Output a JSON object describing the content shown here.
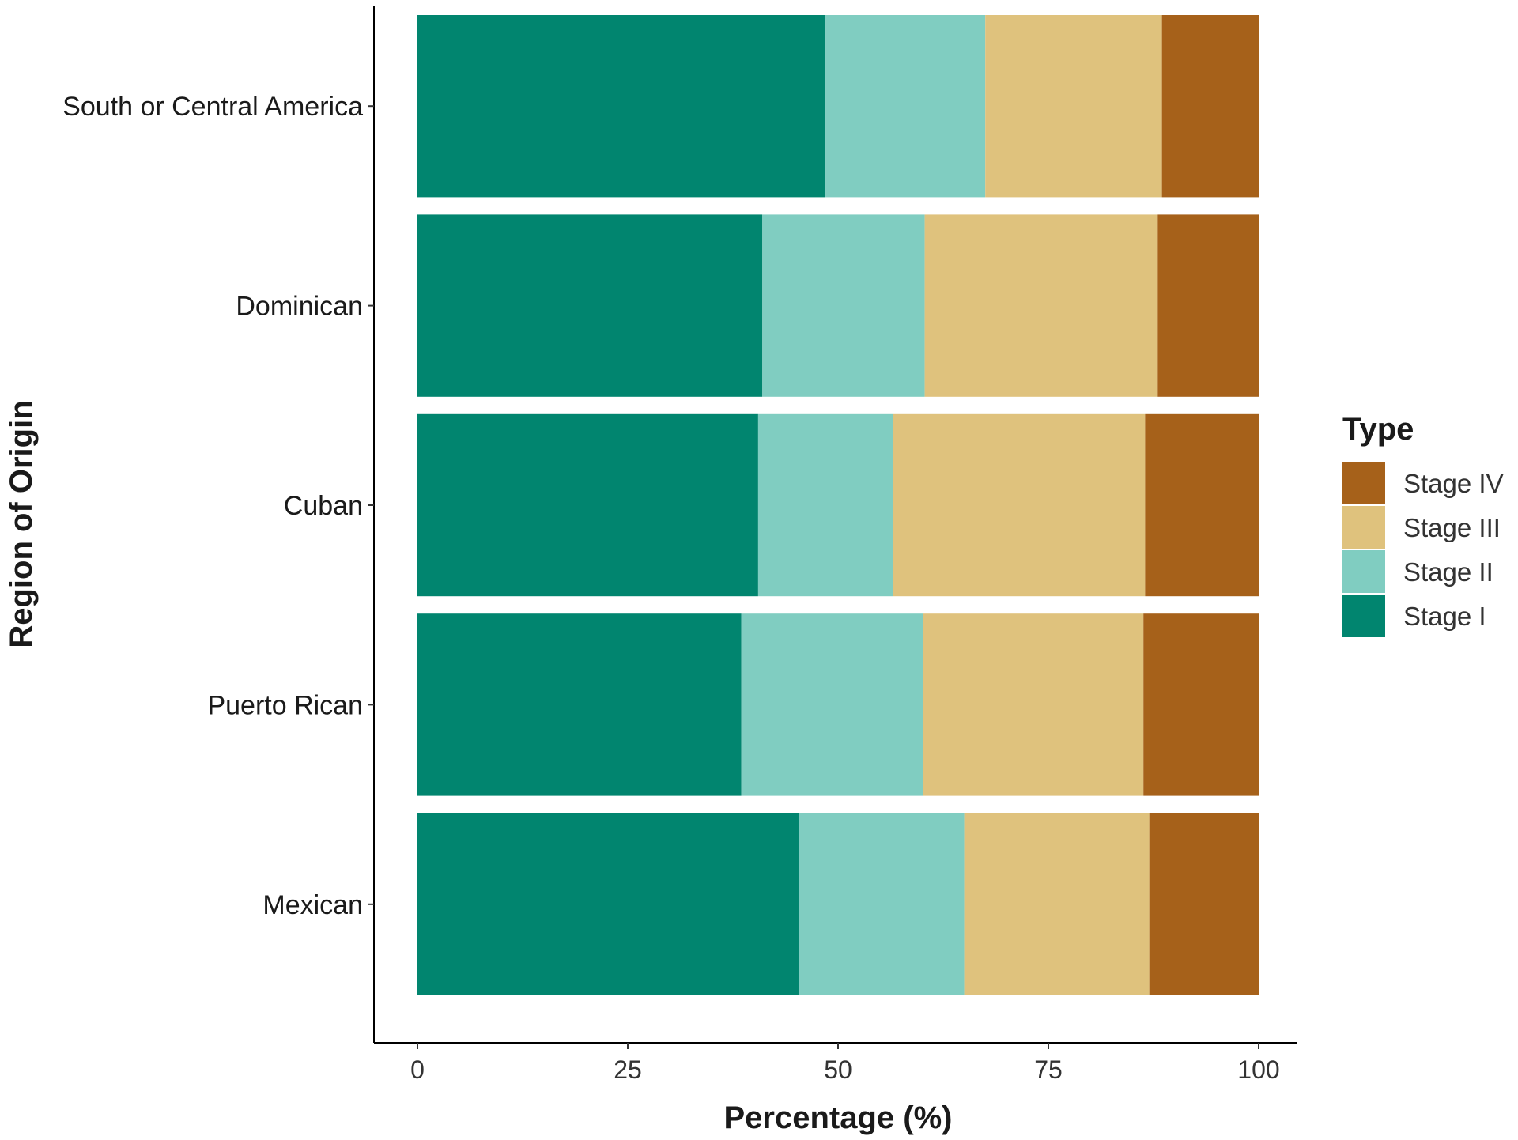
{
  "chart_data": {
    "type": "bar",
    "orientation": "horizontal",
    "stacked": true,
    "xlabel": "Percentage (%)",
    "ylabel": "Region of Origin",
    "xlim": [
      0,
      100
    ],
    "xticks": [
      "0",
      "25",
      "50",
      "75",
      "100"
    ],
    "categories": [
      "South or Central America",
      "Dominican",
      "Cuban",
      "Puerto Rican",
      "Mexican"
    ],
    "series": [
      {
        "name": "Stage I",
        "color": "#01856f",
        "values": [
          48.5,
          41.0,
          40.5,
          38.5,
          45.3
        ]
      },
      {
        "name": "Stage II",
        "color": "#80cdc1",
        "values": [
          19.0,
          19.3,
          16.0,
          21.6,
          19.7
        ]
      },
      {
        "name": "Stage III",
        "color": "#dfc27d",
        "values": [
          21.0,
          27.7,
          30.0,
          26.2,
          22.0
        ]
      },
      {
        "name": "Stage IV",
        "color": "#a6611a",
        "values": [
          11.5,
          12.0,
          13.5,
          13.7,
          13.0
        ]
      }
    ],
    "legend": {
      "title": "Type",
      "position": "right",
      "order": [
        "Stage IV",
        "Stage III",
        "Stage II",
        "Stage I"
      ]
    },
    "grid": false
  }
}
